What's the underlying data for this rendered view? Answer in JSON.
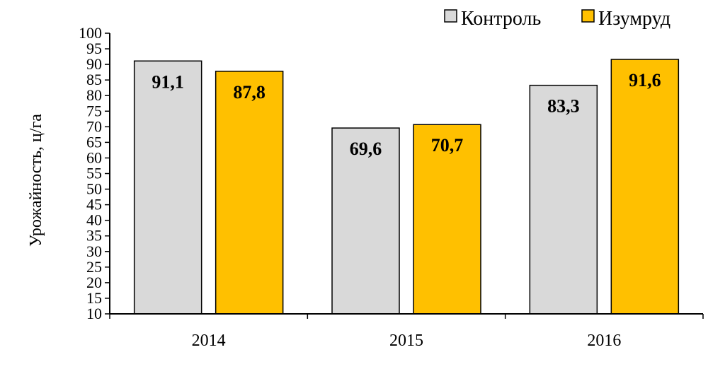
{
  "chart_data": {
    "type": "bar",
    "categories": [
      "2014",
      "2015",
      "2016"
    ],
    "series": [
      {
        "name": "Контроль",
        "values": [
          91.1,
          69.6,
          83.3
        ],
        "color": "#d9d9d9"
      },
      {
        "name": "Изумруд",
        "values": [
          87.8,
          70.7,
          91.6
        ],
        "color": "#ffc000"
      }
    ],
    "data_labels": [
      [
        "91,1",
        "69,6",
        "83,3"
      ],
      [
        "87,8",
        "70,7",
        "91,6"
      ]
    ],
    "ylabel": "Урожайность, ц/га",
    "xlabel": "",
    "title": "",
    "ylim": [
      10,
      100
    ],
    "ytick_step": 5,
    "grid": false,
    "legend_position": "top-right"
  }
}
